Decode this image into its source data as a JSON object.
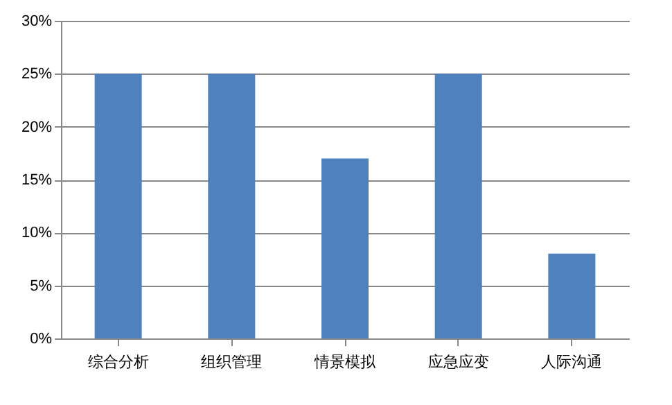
{
  "chart_data": {
    "type": "bar",
    "categories": [
      "综合分析",
      "组织管理",
      "情景模拟",
      "应急应变",
      "人际沟通"
    ],
    "values": [
      25,
      25,
      17,
      25,
      8
    ],
    "color": "#4f81bd",
    "ylim": [
      0,
      30
    ],
    "yticks": [
      {
        "value": 0,
        "label": "0%"
      },
      {
        "value": 5,
        "label": "5%"
      },
      {
        "value": 10,
        "label": "10%"
      },
      {
        "value": 15,
        "label": "15%"
      },
      {
        "value": 20,
        "label": "20%"
      },
      {
        "value": 25,
        "label": "25%"
      },
      {
        "value": 30,
        "label": "30%"
      }
    ],
    "grid": "y"
  }
}
